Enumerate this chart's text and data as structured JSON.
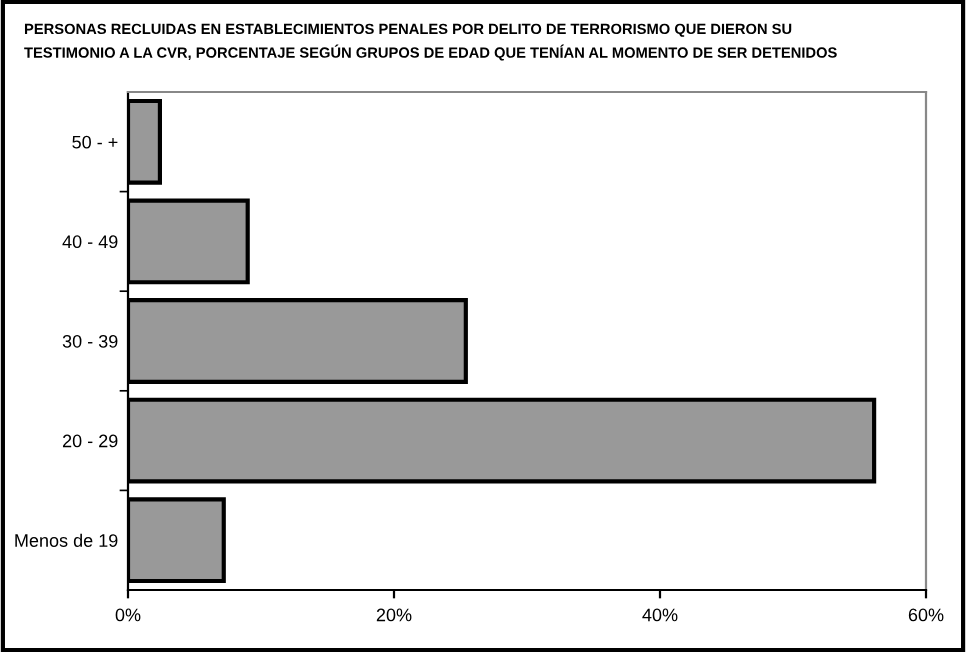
{
  "chart_data": {
    "type": "bar",
    "orientation": "horizontal",
    "title": "PERSONAS RECLUIDAS EN ESTABLECIMIENTOS PENALES POR DELITO DE TERRORISMO QUE DIERON SU\nTESTIMONIO A LA CVR, PORCENTAJE SEGÚN GRUPOS DE EDAD QUE TENÍAN AL MOMENTO DE SER DETENIDOS",
    "categories": [
      "50 - +",
      "40 - 49",
      "30 - 39",
      "20 - 29",
      "Menos de 19"
    ],
    "values": [
      2.4,
      9.0,
      25.4,
      56.1,
      7.2
    ],
    "color": "#999999",
    "xlim": [
      0,
      60
    ],
    "xticks": [
      {
        "value": 0,
        "label": "0%"
      },
      {
        "value": 20,
        "label": "20%"
      },
      {
        "value": 40,
        "label": "40%"
      },
      {
        "value": 60,
        "label": "60%"
      }
    ],
    "grid": false
  }
}
